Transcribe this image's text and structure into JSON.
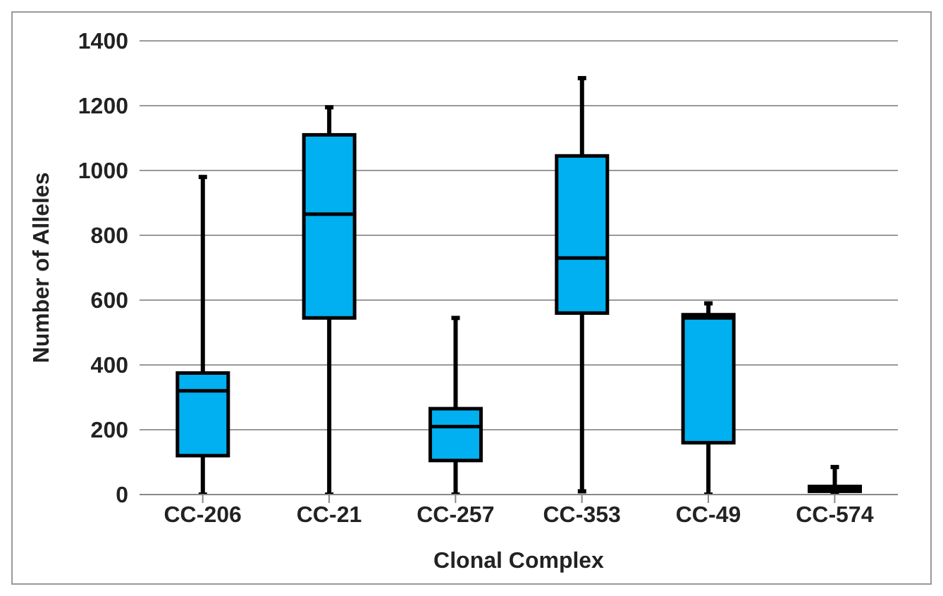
{
  "chart_data": {
    "type": "box",
    "xlabel": "Clonal Complex",
    "ylabel": "Number of Alleles",
    "categories": [
      "CC-206",
      "CC-21",
      "CC-257",
      "CC-353",
      "CC-49",
      "CC-574"
    ],
    "color": "#00b0f0",
    "boxes": [
      {
        "low": 0,
        "q1": 120,
        "median": 320,
        "q3": 375,
        "high": 980
      },
      {
        "low": 0,
        "q1": 545,
        "median": 865,
        "q3": 1110,
        "high": 1195
      },
      {
        "low": 0,
        "q1": 105,
        "median": 210,
        "q3": 265,
        "high": 545
      },
      {
        "low": 10,
        "q1": 560,
        "median": 730,
        "q3": 1045,
        "high": 1285
      },
      {
        "low": 0,
        "q1": 160,
        "median": 545,
        "q3": 555,
        "high": 590
      },
      {
        "low": 5,
        "q1": 10,
        "median": 20,
        "q3": 25,
        "high": 85
      }
    ],
    "ylim": [
      0,
      1400
    ],
    "yticks": [
      0,
      200,
      400,
      600,
      800,
      1000,
      1200,
      1400
    ],
    "grid": "y"
  }
}
